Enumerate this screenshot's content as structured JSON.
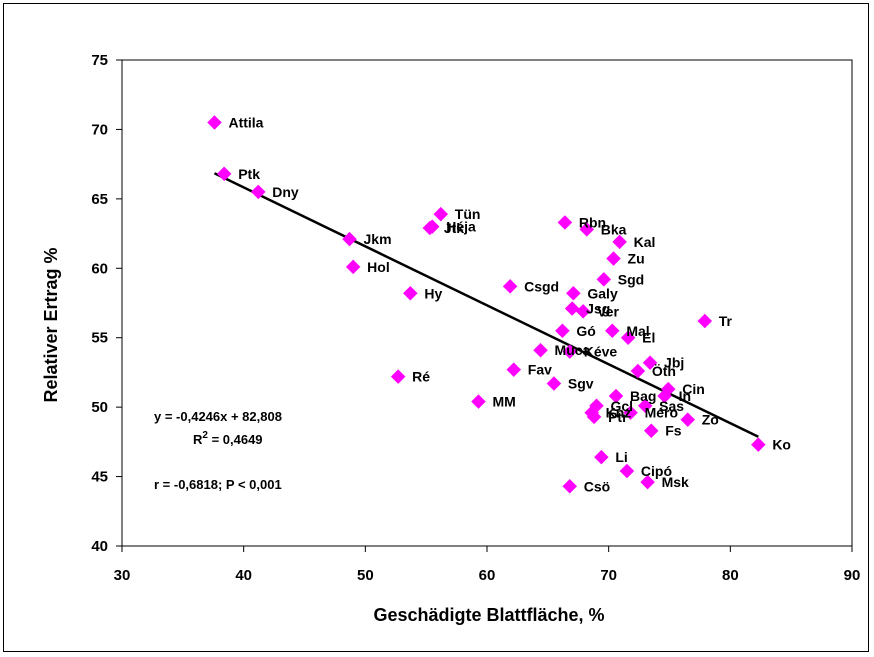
{
  "colors": {
    "marker": "#FF00FF",
    "trendline": "#000000"
  },
  "chart_data": {
    "type": "scatter",
    "xlabel": "Geschädigte Blattfläche, %",
    "ylabel": "Relativer Ertrag %",
    "xlim": [
      30,
      90
    ],
    "ylim": [
      40,
      75
    ],
    "xticks": [
      "30",
      "40",
      "50",
      "60",
      "70",
      "80",
      "90"
    ],
    "yticks": [
      "40",
      "45",
      "50",
      "55",
      "60",
      "65",
      "70",
      "75"
    ],
    "grid": false,
    "points": [
      {
        "label": "Attila",
        "x": 37.6,
        "y": 70.5
      },
      {
        "label": "Ptk",
        "x": 38.4,
        "y": 66.8
      },
      {
        "label": "Dny",
        "x": 41.2,
        "y": 65.5
      },
      {
        "label": "Jkm",
        "x": 48.7,
        "y": 62.1
      },
      {
        "label": "Hol",
        "x": 49.0,
        "y": 60.1
      },
      {
        "label": "Hy",
        "x": 53.7,
        "y": 58.2
      },
      {
        "label": "Ré",
        "x": 52.7,
        "y": 52.2
      },
      {
        "label": "Tün",
        "x": 56.2,
        "y": 63.9
      },
      {
        "label": "Héja",
        "x": 55.5,
        "y": 63.0
      },
      {
        "label": "Jtk",
        "x": 55.3,
        "y": 62.9
      },
      {
        "label": "MM",
        "x": 59.3,
        "y": 50.4
      },
      {
        "label": "Csgd",
        "x": 61.9,
        "y": 58.7
      },
      {
        "label": "Fav",
        "x": 62.2,
        "y": 52.7
      },
      {
        "label": "Sgv",
        "x": 65.5,
        "y": 51.7
      },
      {
        "label": "Muca",
        "x": 64.4,
        "y": 54.1
      },
      {
        "label": "Gó",
        "x": 66.2,
        "y": 55.5
      },
      {
        "label": "Rbn",
        "x": 66.4,
        "y": 63.3
      },
      {
        "label": "Bka",
        "x": 68.2,
        "y": 62.8
      },
      {
        "label": "Galy",
        "x": 67.1,
        "y": 58.2
      },
      {
        "label": "Jsg",
        "x": 67.0,
        "y": 57.1
      },
      {
        "label": "Ver",
        "x": 67.9,
        "y": 56.9
      },
      {
        "label": "Kéve",
        "x": 66.8,
        "y": 54.0
      },
      {
        "label": "Csö",
        "x": 66.8,
        "y": 44.3
      },
      {
        "label": "Sgd",
        "x": 69.6,
        "y": 59.2
      },
      {
        "label": "Zu",
        "x": 70.4,
        "y": 60.7
      },
      {
        "label": "Kal",
        "x": 70.9,
        "y": 61.9
      },
      {
        "label": "Mal",
        "x": 70.3,
        "y": 55.5
      },
      {
        "label": "El",
        "x": 71.6,
        "y": 55.0
      },
      {
        "label": "Bag",
        "x": 70.6,
        "y": 50.8
      },
      {
        "label": "Gcl",
        "x": 69.0,
        "y": 50.1
      },
      {
        "label": "Ptr",
        "x": 68.8,
        "y": 49.3
      },
      {
        "label": "Knz",
        "x": 68.6,
        "y": 49.6
      },
      {
        "label": "Li",
        "x": 69.4,
        "y": 46.4
      },
      {
        "label": "Cipó",
        "x": 71.5,
        "y": 45.4
      },
      {
        "label": "Msk",
        "x": 73.2,
        "y": 44.6
      },
      {
        "label": "Jbj",
        "x": 73.4,
        "y": 53.2
      },
      {
        "label": "Öth",
        "x": 72.4,
        "y": 52.6
      },
      {
        "label": "Cin",
        "x": 74.9,
        "y": 51.3
      },
      {
        "label": "In",
        "x": 74.6,
        "y": 50.8
      },
      {
        "label": "Sas",
        "x": 73.0,
        "y": 50.1
      },
      {
        "label": "Méro",
        "x": 71.8,
        "y": 49.6
      },
      {
        "label": "Fs",
        "x": 73.5,
        "y": 48.3
      },
      {
        "label": "Zo",
        "x": 76.5,
        "y": 49.1
      },
      {
        "label": "Tr",
        "x": 77.9,
        "y": 56.2
      },
      {
        "label": "Ko",
        "x": 82.3,
        "y": 47.3
      }
    ],
    "trendline": {
      "slope": -0.4246,
      "intercept": 82.808,
      "x_range": [
        37.6,
        82.3
      ]
    },
    "annotations": [
      "y = -0,4246x + 82,808",
      "R",
      "2",
      " = 0,4649",
      "r = -0,6818; P < 0,001"
    ]
  }
}
